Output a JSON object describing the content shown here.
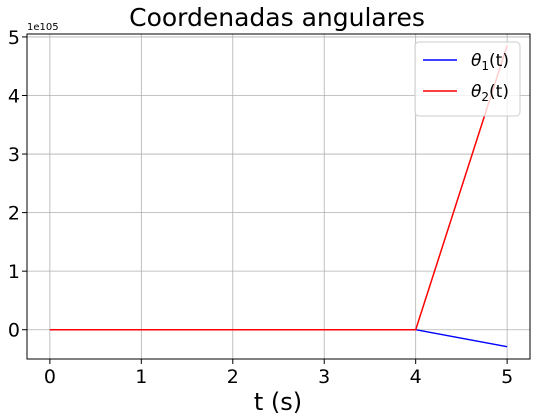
{
  "chart_data": {
    "type": "line",
    "title": "Coordenadas angulares",
    "xlabel": "t (s)",
    "ylabel": "",
    "y_offset_label": "1e105",
    "xlim": [
      -0.25,
      5.25
    ],
    "ylim": [
      -0.5,
      5.05
    ],
    "x_ticks": [
      0,
      1,
      2,
      3,
      4,
      5
    ],
    "y_ticks": [
      0,
      1,
      2,
      3,
      4,
      5
    ],
    "grid": true,
    "legend_position": "top-right",
    "x": [
      0,
      1,
      2,
      3,
      4,
      5
    ],
    "series": [
      {
        "name": "θ1(t)",
        "legend": {
          "symbol": "θ",
          "sub": "1",
          "arg": "(t)"
        },
        "color": "#0000ff",
        "values": [
          0,
          0,
          0,
          0,
          0,
          -0.29
        ]
      },
      {
        "name": "θ2(t)",
        "legend": {
          "symbol": "θ",
          "sub": "2",
          "arg": "(t)"
        },
        "color": "#ff0000",
        "values": [
          0,
          0,
          0,
          0,
          0,
          4.85
        ]
      }
    ]
  }
}
